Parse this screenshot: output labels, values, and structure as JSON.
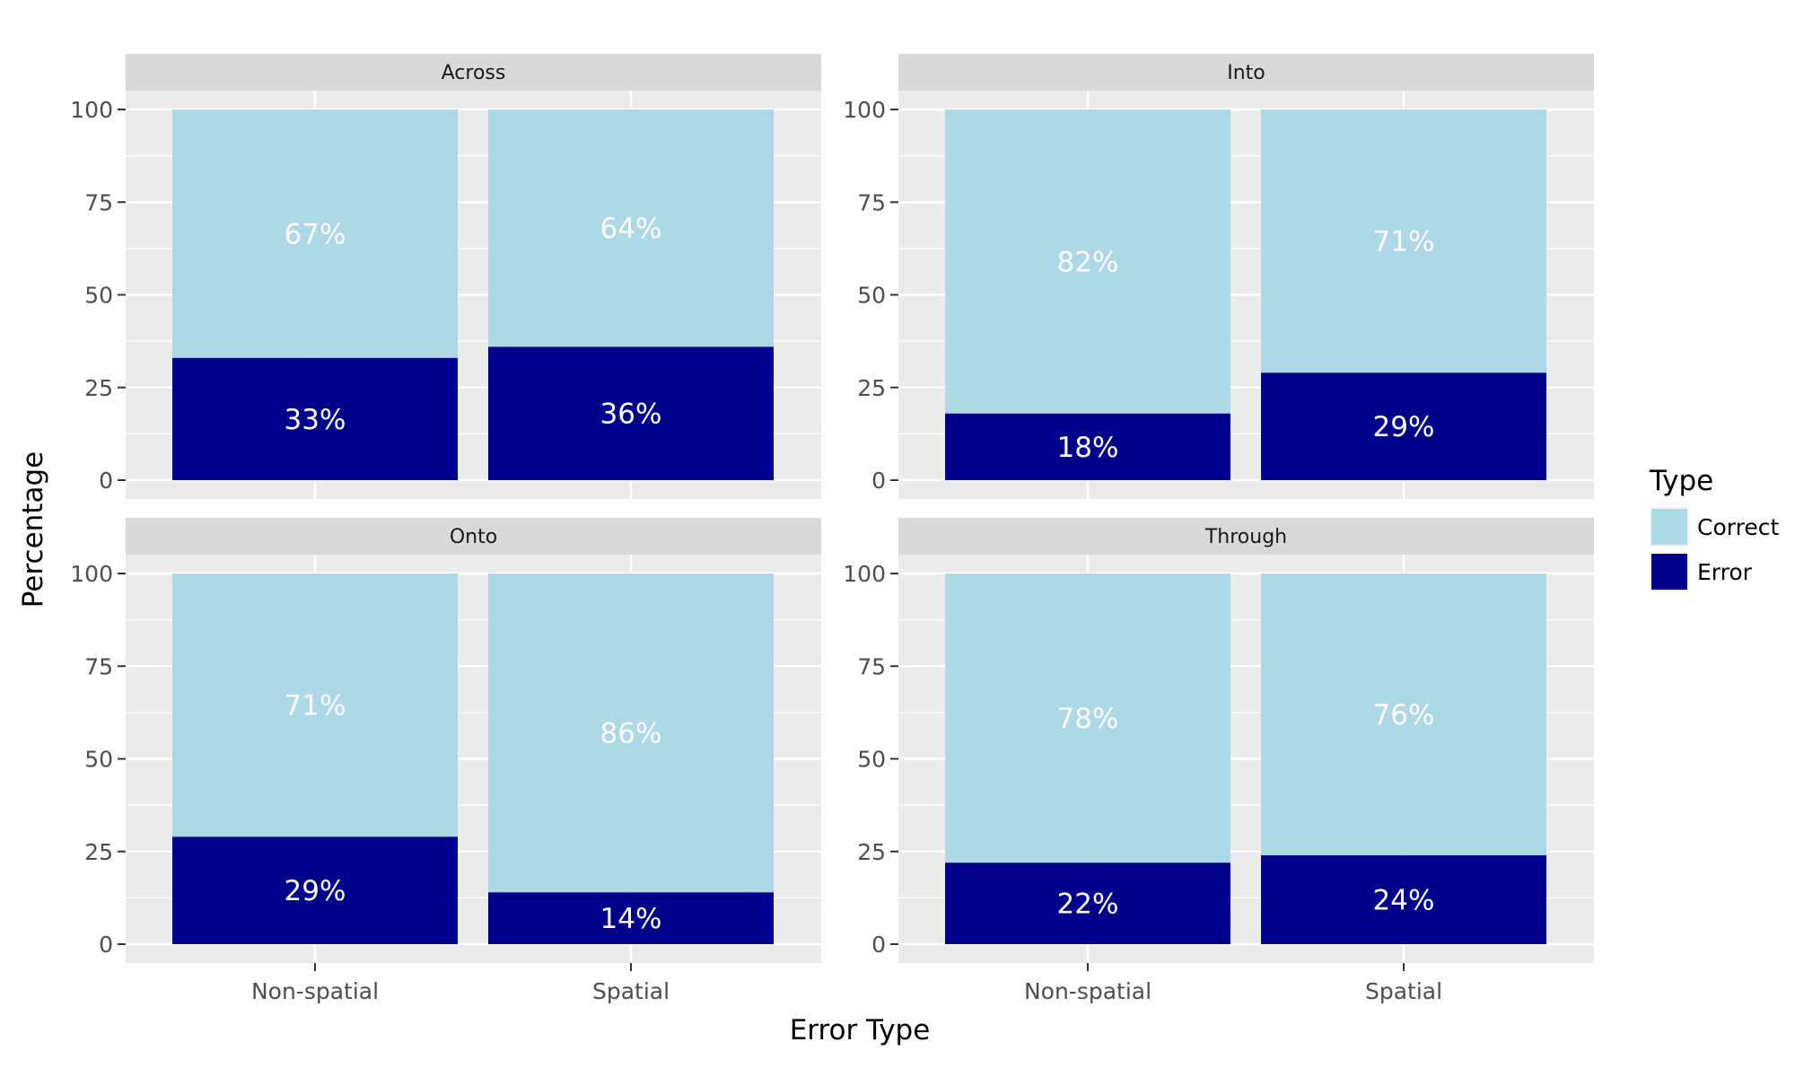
{
  "chart_data": {
    "type": "bar",
    "stacked": true,
    "xlabel": "Error Type",
    "ylabel": "Percentage",
    "ylim": [
      0,
      100
    ],
    "yticks": [
      0,
      25,
      50,
      75,
      100
    ],
    "grid": true,
    "legend": {
      "title": "Type",
      "position": "right",
      "entries": [
        {
          "name": "Correct",
          "color": "#add8e6"
        },
        {
          "name": "Error",
          "color": "#00008b"
        }
      ]
    },
    "categories": [
      "Non-spatial",
      "Spatial"
    ],
    "panels": [
      {
        "title": "Across",
        "series": [
          {
            "name": "Error",
            "values": [
              33,
              36
            ],
            "labels": [
              "33%",
              "36%"
            ]
          },
          {
            "name": "Correct",
            "values": [
              67,
              64
            ],
            "labels": [
              "67%",
              "64%"
            ]
          }
        ]
      },
      {
        "title": "Into",
        "series": [
          {
            "name": "Error",
            "values": [
              18,
              29
            ],
            "labels": [
              "18%",
              "29%"
            ]
          },
          {
            "name": "Correct",
            "values": [
              82,
              71
            ],
            "labels": [
              "82%",
              "71%"
            ]
          }
        ]
      },
      {
        "title": "Onto",
        "series": [
          {
            "name": "Error",
            "values": [
              29,
              14
            ],
            "labels": [
              "29%",
              "14%"
            ]
          },
          {
            "name": "Correct",
            "values": [
              71,
              86
            ],
            "labels": [
              "71%",
              "86%"
            ]
          }
        ]
      },
      {
        "title": "Through",
        "series": [
          {
            "name": "Error",
            "values": [
              22,
              24
            ],
            "labels": [
              "22%",
              "24%"
            ]
          },
          {
            "name": "Correct",
            "values": [
              78,
              76
            ],
            "labels": [
              "78%",
              "76%"
            ]
          }
        ]
      }
    ]
  }
}
